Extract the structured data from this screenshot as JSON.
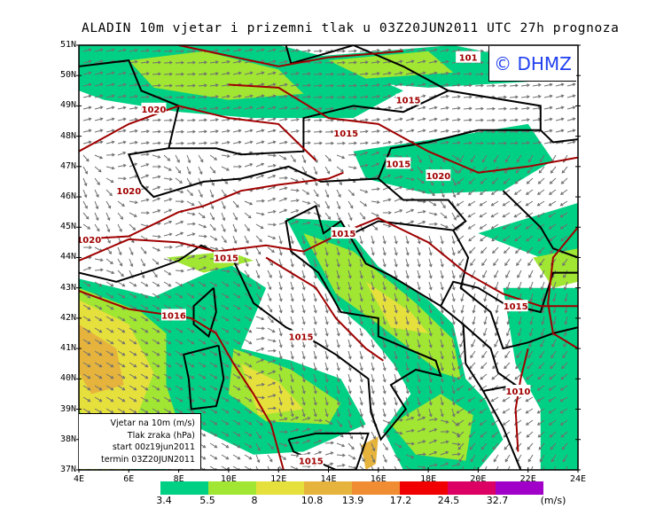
{
  "title": "ALADIN 10m vjetar i prizemni tlak u 03Z20JUN2011 UTC 27h prognoza",
  "watermark": "© DHMZ",
  "info_box": [
    "Vjetar na 10m (m/s)",
    "Tlak zraka (hPa)",
    "start 00z19jun2011",
    "termin 03Z20JUN2011"
  ],
  "lat_labels": [
    "51N",
    "50N",
    "49N",
    "48N",
    "47N",
    "46N",
    "45N",
    "44N",
    "43N",
    "42N",
    "41N",
    "40N",
    "39N",
    "38N",
    "37N"
  ],
  "lon_labels": [
    "4E",
    "6E",
    "8E",
    "10E",
    "12E",
    "14E",
    "16E",
    "18E",
    "20E",
    "22E",
    "24E"
  ],
  "isobar_labels": [
    "1020",
    "1020",
    "1020",
    "1020",
    "1015",
    "1015",
    "1015",
    "1015",
    "1016",
    "1015",
    "1015",
    "1015",
    "1010",
    "1015",
    "101"
  ],
  "legend": {
    "colors": [
      "#00d084",
      "#a0e632",
      "#e6e03c",
      "#e6b43c",
      "#f08c32",
      "#f00000",
      "#dc0064",
      "#a000c8"
    ],
    "labels": [
      "3.4",
      "5.5",
      "8",
      "10.8",
      "13.9",
      "17.2",
      "24.5",
      "32.7"
    ],
    "unit": "(m/s)"
  },
  "colors": {
    "isobar": "#a00000",
    "coastline": "#000000",
    "wind_arrow": "#707070",
    "watermark": "#2040f0"
  }
}
